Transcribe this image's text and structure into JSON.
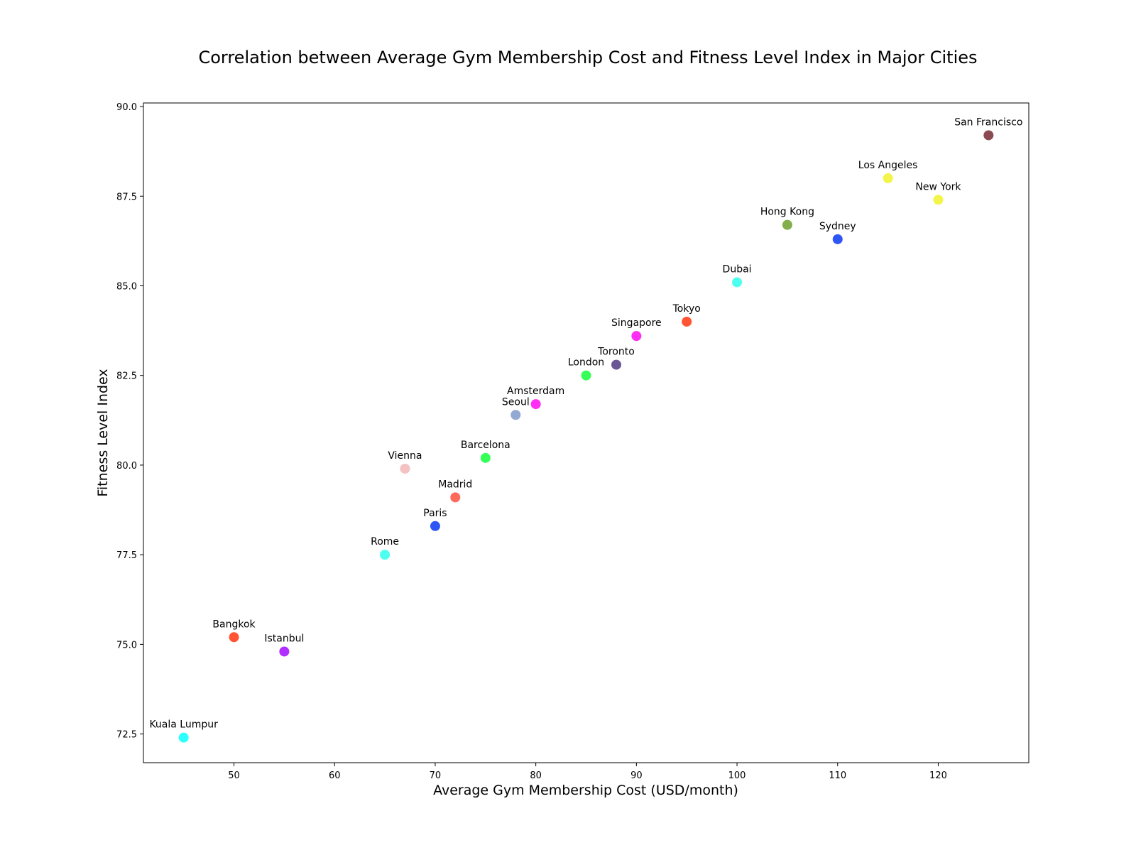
{
  "chart_data": {
    "type": "scatter",
    "title": "Correlation between Average Gym Membership Cost and Fitness Level Index in Major Cities",
    "xlabel": "Average Gym Membership Cost (USD/month)",
    "ylabel": "Fitness Level Index",
    "xlim": [
      41,
      129
    ],
    "ylim": [
      71.7,
      90.1
    ],
    "xticks": [
      50,
      60,
      70,
      80,
      90,
      100,
      110,
      120
    ],
    "yticks": [
      72.5,
      75.0,
      77.5,
      80.0,
      82.5,
      85.0,
      87.5,
      90.0
    ],
    "xtick_labels": [
      "50",
      "60",
      "70",
      "80",
      "90",
      "100",
      "110",
      "120"
    ],
    "ytick_labels": [
      "72.5",
      "75.0",
      "77.5",
      "80.0",
      "82.5",
      "85.0",
      "87.5",
      "90.0"
    ],
    "grid": false,
    "points": [
      {
        "label": "Kuala Lumpur",
        "x": 45,
        "y": 72.4,
        "color": "#2effff"
      },
      {
        "label": "Bangkok",
        "x": 50,
        "y": 75.2,
        "color": "#ff5533"
      },
      {
        "label": "Istanbul",
        "x": 55,
        "y": 74.8,
        "color": "#b02eff"
      },
      {
        "label": "Rome",
        "x": 65,
        "y": 77.5,
        "color": "#4dfff0"
      },
      {
        "label": "Vienna",
        "x": 67,
        "y": 79.9,
        "color": "#f4c2c2"
      },
      {
        "label": "Paris",
        "x": 70,
        "y": 78.3,
        "color": "#2f55f5"
      },
      {
        "label": "Madrid",
        "x": 72,
        "y": 79.1,
        "color": "#ff6b5b"
      },
      {
        "label": "Barcelona",
        "x": 75,
        "y": 80.2,
        "color": "#36ff58"
      },
      {
        "label": "Seoul",
        "x": 78,
        "y": 81.4,
        "color": "#93a8d2"
      },
      {
        "label": "Amsterdam",
        "x": 80,
        "y": 81.7,
        "color": "#ff2ef5"
      },
      {
        "label": "London",
        "x": 85,
        "y": 82.5,
        "color": "#36ff58"
      },
      {
        "label": "Toronto",
        "x": 88,
        "y": 82.8,
        "color": "#6b5795"
      },
      {
        "label": "Singapore",
        "x": 90,
        "y": 83.6,
        "color": "#ff2ef5"
      },
      {
        "label": "Tokyo",
        "x": 95,
        "y": 84.0,
        "color": "#ff5533"
      },
      {
        "label": "Dubai",
        "x": 100,
        "y": 85.1,
        "color": "#4dfff0"
      },
      {
        "label": "Hong Kong",
        "x": 105,
        "y": 86.7,
        "color": "#84ae4a"
      },
      {
        "label": "Sydney",
        "x": 110,
        "y": 86.3,
        "color": "#2f55f5"
      },
      {
        "label": "Los Angeles",
        "x": 115,
        "y": 88.0,
        "color": "#f3f54a"
      },
      {
        "label": "New York",
        "x": 120,
        "y": 87.4,
        "color": "#f3f54a"
      },
      {
        "label": "San Francisco",
        "x": 125,
        "y": 89.2,
        "color": "#8b4a52"
      }
    ]
  }
}
